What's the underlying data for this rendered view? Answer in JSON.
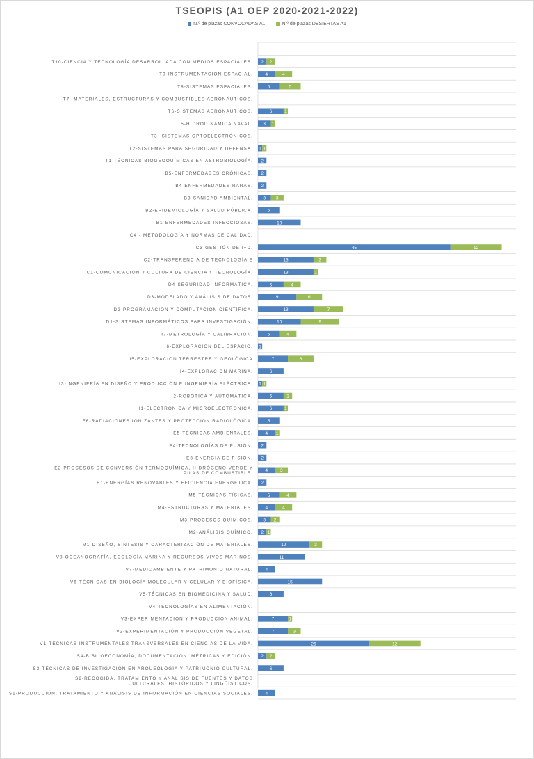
{
  "chart_data": {
    "type": "bar",
    "orientation": "horizontal",
    "stacked": true,
    "title": "TSEOPIS (A1 OEP 2020-2021-2022)",
    "legend_position": "top",
    "grid": true,
    "xlim": [
      0,
      60
    ],
    "colors": {
      "convocadas": "#4f81bd",
      "desiertas": "#9bbb59"
    },
    "categories": [
      "T10-CIENCIA Y TECNOLOGÍA DESARROLLADA CON MEDIOS ESPACIALES.",
      "T9-INSTRUMENTACIÓN ESPACIAL.",
      "T8-SISTEMAS ESPACIALES.",
      "T7- MATERIALES, ESTRUCTURAS Y COMBUSTIBLES AERONÁUTICOS.",
      "T6-SISTEMAS AERONÁUTICOS.",
      "T5-HIDRODINÁMICA NAVAL.",
      "T3- SISTEMAS OPTOELECTRÓNICOS.",
      "T2-SISTEMAS PARA SEGURIDAD Y DEFENSA.",
      "T1 TÉCNICAS BIOGEOQUÍMICAS EN ASTROBIOLOGÍA.",
      "B5-ENFERMEDADES CRÓNICAS.",
      "B4-ENFERMEDADES RARAS.",
      "B3-SANIDAD AMBIENTAL.",
      "B2-EPIDEMIOLOGÍA Y SALUD PÚBLICA.",
      "B1-ENFERMEDADES INFECCIOSAS.",
      "C4 - METODOLOGÍA Y NORMAS DE CALIDAD.",
      "C3-GESTIÓN DE I+D.",
      "C2-TRANSFERENCIA DE TECNOLOGÍA E",
      "C1-COMUNICACIÓN Y CULTURA DE CIENCIA Y TECNOLOGÍA.",
      "D4-SEGURIDAD INFORMÁTICA.",
      "D3-MODELADO Y ANÁLISIS DE DATOS.",
      "D2-PROGRAMACIÓN Y COMPUTACIÓN CIENTÍFICA.",
      "D1-SISTEMAS INFORMÁTICOS PARA INVESTIGACIÓN.",
      "I7-METROLOGÍA Y CALIBRACIÓN.",
      "I6-EXPLORACION DEL ESPACIO.",
      "I5-EXPLORACION TERRESTRE Y GEOLÓGICA",
      "I4-EXPLORACIÓN MARINA.",
      "I3-INGENIERÍA EN DISEÑO Y PRODUCCIÓN E INGENIERÍA ELÉCTRICA.",
      "I2-ROBÓTICA Y AUTOMÁTICA.",
      "I1-ELECTRÓNICA Y MICROELECTRÓNICA.",
      "E6-RADIACIONES IONIZANTES Y PROTECCIÓN RADIOLÓGICA.",
      "E5-TÉCNICAS AMBIENTALES.",
      "E4-TECNOLOGÍAS DE FUSIÓN.",
      "E3-ENERGÍA DE FISIÓN.",
      "E2-PROCESOS DE CONVERSIÓN TERMOQUÍMICA, HIDRÓGENO VERDE Y PILAS DE COMBUSTIBLE.",
      "E1-ENERGÍAS RENOVABLES Y EFICIENCIA ENERGÉTICA.",
      "M5-TÉCNICAS FÍSICAS.",
      "M4-ESTRUCTURAS Y MATERIALES.",
      "M3-PROCESOS QUÍMICOS.",
      "M2-ANÁLISIS QUÍMICO.",
      "M1-DISEÑO, SÍNTESIS Y CARACTERIZACIÓN DE MATERIALES.",
      "V8-OCEANOGRAFÍA, ECOLOGÍA MARINA Y RECURSOS VIVOS MARINOS.",
      "V7-MEDIOAMBIENTE Y PATRIMONIO NATURAL.",
      "V6-TÉCNICAS EN BIOLOGÍA MOLECULAR Y CELULAR Y BIOFÍSICA.",
      "V5-TÉCNICAS EN BIOMEDICINA Y SALUD.",
      "V4-TECNOLOGÍAS EN ALIMENTACIÓN.",
      "V3-EXPERIMENTACIÓN Y PRODUCCIÓN ANIMAL.",
      "V2-EXPERIMENTACIÓN Y PRODUCCIÓN VEGETAL.",
      "V1-TÉCNICAS INSTRUMENTALES TRANSVERSALES EN CIENCIAS DE LA VIDA.",
      "S4-BIBLIOECONOMÍA, DOCUMENTACIÓN, MÉTRICAS Y EDICIÓN.",
      "S3-TÉCNICAS DE INVESTIGACIÓN EN ARQUEOLOGÍA Y PATRIMONIO CULTURAL.",
      "S2-RECOGIDA, TRATAMIENTO Y ANÁLISIS DE FUENTES Y DATOS CULTURALES, HISTÓRICOS Y LINGÜÍSTICOS.",
      "S1-PRODUCCIÓN, TRATAMIENTO Y ANÁLISIS DE INFORMACIÓN EN CIENCIAS SOCIALES."
    ],
    "series": [
      {
        "key": "convocadas",
        "name": "N.º de plazas CONVOCADAS A1",
        "values": [
          2,
          4,
          5,
          null,
          6,
          3,
          null,
          1,
          2,
          2,
          2,
          3,
          5,
          10,
          null,
          45,
          13,
          13,
          6,
          9,
          13,
          10,
          5,
          1,
          7,
          6,
          1,
          6,
          6,
          5,
          4,
          2,
          2,
          4,
          2,
          5,
          4,
          3,
          2,
          12,
          11,
          4,
          15,
          6,
          null,
          7,
          7,
          26,
          2,
          6,
          null,
          4
        ]
      },
      {
        "key": "desiertas",
        "name": "N.º de plazas DESIERTAS A1",
        "values": [
          2,
          4,
          5,
          null,
          1,
          1,
          null,
          1,
          null,
          null,
          null,
          3,
          null,
          null,
          null,
          12,
          3,
          1,
          4,
          6,
          7,
          9,
          4,
          null,
          6,
          null,
          1,
          2,
          1,
          null,
          1,
          null,
          null,
          3,
          null,
          4,
          4,
          2,
          1,
          3,
          null,
          null,
          null,
          null,
          null,
          1,
          3,
          12,
          2,
          null,
          null,
          null
        ]
      }
    ]
  }
}
